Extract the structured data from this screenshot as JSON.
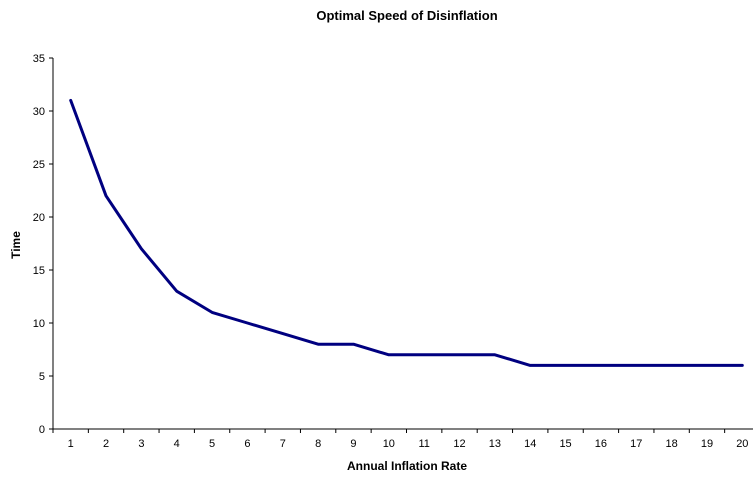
{
  "chart_data": {
    "type": "line",
    "title": "Optimal Speed of Disinflation",
    "xlabel": "Annual Inflation Rate",
    "ylabel": "Time",
    "categories": [
      "1",
      "2",
      "3",
      "4",
      "5",
      "6",
      "7",
      "8",
      "9",
      "10",
      "11",
      "12",
      "13",
      "14",
      "15",
      "16",
      "17",
      "18",
      "19",
      "20"
    ],
    "series": [
      {
        "values": [
          31,
          22,
          17,
          13,
          11,
          10,
          9,
          8,
          8,
          7,
          7,
          7,
          7,
          6,
          6,
          6,
          6,
          6,
          6,
          6
        ]
      }
    ],
    "ylim": [
      0,
      35
    ],
    "yticks": [
      "0",
      "5",
      "10",
      "15",
      "20",
      "25",
      "30",
      "35"
    ],
    "grid": false,
    "legend": "none",
    "colors": {
      "line": "#000080",
      "axis": "#000000"
    }
  }
}
